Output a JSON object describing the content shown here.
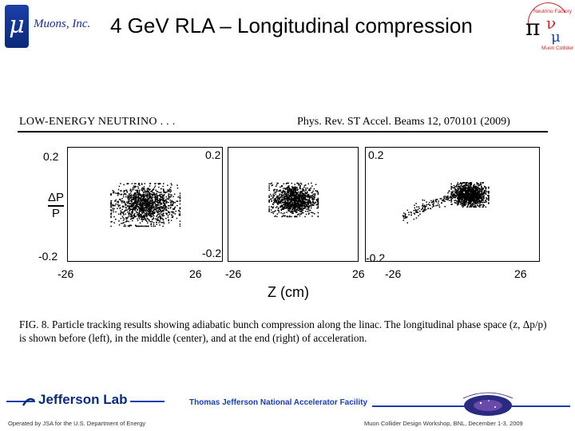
{
  "header": {
    "company": "Muons, Inc.",
    "mu_glyph": "μ",
    "title": "4 GeV RLA – Longitudinal compression",
    "nfmcc_logo": "NFMCC",
    "nfmcc_lettering": "Neutrino Factory / Muon Collider",
    "nfmcc_pi": "π",
    "nfmcc_nu": "ν",
    "nfmcc_mu": "μ"
  },
  "paper": {
    "running_head_left": "LOW-ENERGY NEUTRINO . . .",
    "running_head_right": "Phys. Rev. ST Accel. Beams 12, 070101 (2009)",
    "caption": "FIG. 8.   Particle tracking results showing adiabatic bunch compression along the linac. The longitudinal phase space (z, Δp/p) is shown before (left), in the middle (center), and at the end (right) of acceleration."
  },
  "chart_data": {
    "type": "scatter",
    "title": "",
    "xlabel": "Z  (cm)",
    "ylabel_num": "ΔP",
    "ylabel_den": "P",
    "xlim": [
      -26,
      26
    ],
    "ylim": [
      -0.2,
      0.2
    ],
    "panels": [
      {
        "name": "before",
        "ytick_top": "0.2",
        "ytick_bottom": "-0.2",
        "xtick_left": "-26",
        "xtick_right": "26",
        "xtick_right_shown": "26",
        "cx": 0,
        "cy": 0,
        "sx": 10.5,
        "sy": 0.07,
        "n": 1300,
        "shape": "ellipse"
      },
      {
        "name": "middle",
        "ytick_top": "0.2",
        "ytick_bottom": "-0.2",
        "xtick_left": "-26",
        "xtick_right": "26",
        "cx": 0,
        "cy": 0.02,
        "sx": 9,
        "sy": 0.055,
        "n": 1100,
        "shape": "ellipse"
      },
      {
        "name": "end",
        "ytick_top": "0.2",
        "ytick_bottom": "-0.2",
        "xtick_left": "-26",
        "xtick_right": "26",
        "cx": 5.5,
        "cy": 0.04,
        "sx": 5,
        "sy": 0.04,
        "n": 1300,
        "shape": "comet"
      }
    ]
  },
  "footer": {
    "lab_name": "Jefferson Lab",
    "lab_full": "Thomas Jefferson National Accelerator Facility",
    "operated": "Operated by JSA for the U.S. Department of Energy",
    "workshop": "Muon Collider Design Workshop,  BNL,  December 1-3, 2009",
    "workshop_logo": "Muon Collider Design Workshop"
  }
}
